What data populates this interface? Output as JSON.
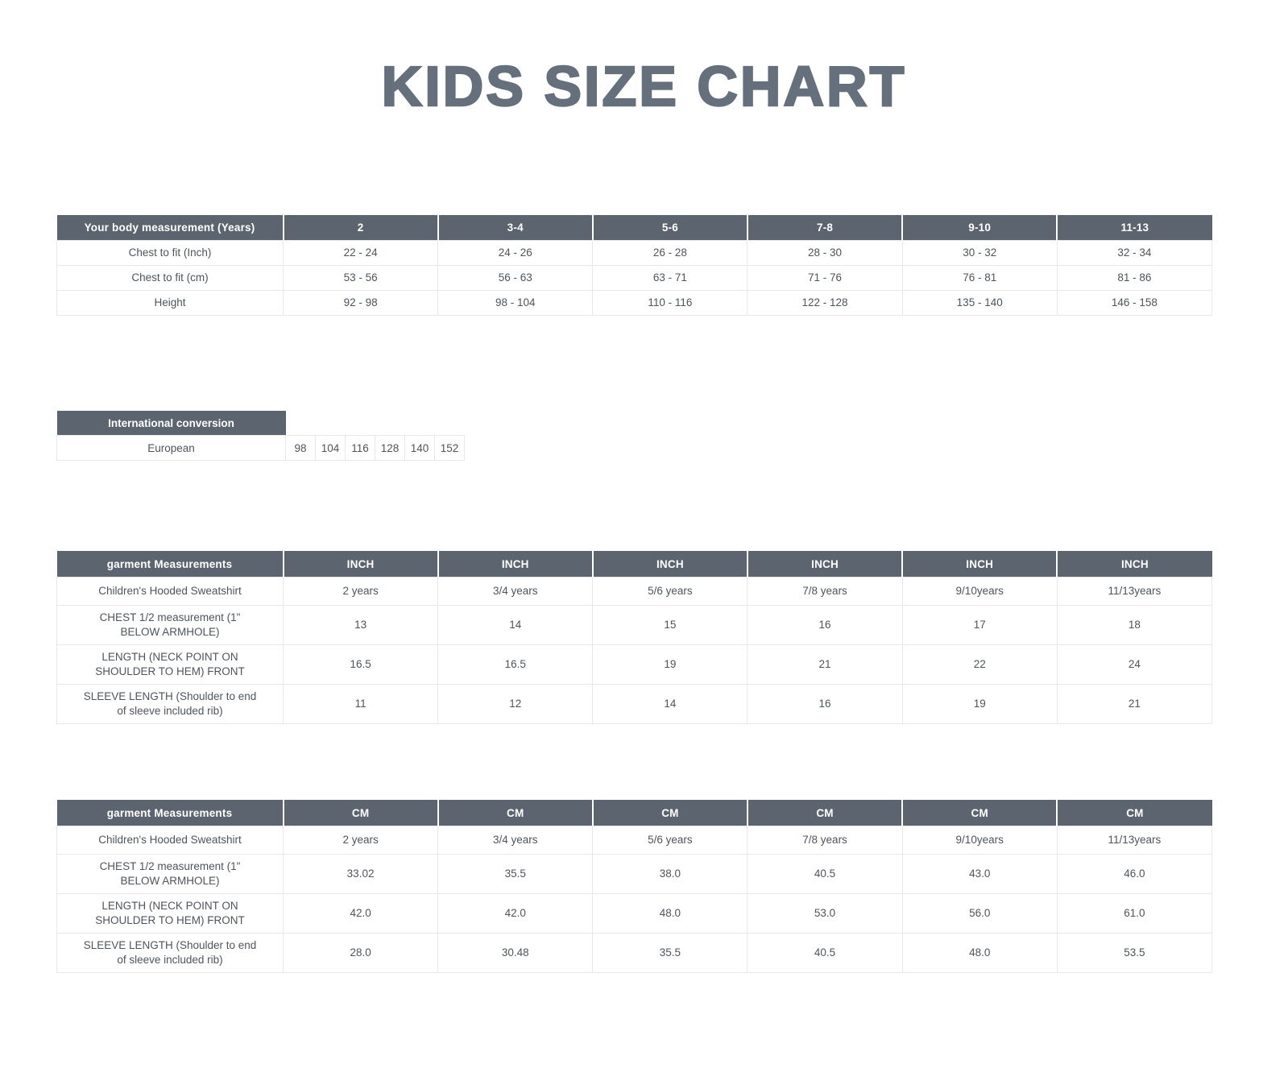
{
  "page": {
    "title": "KIDS SIZE CHART"
  },
  "colors": {
    "header_background": "#5c656f",
    "title_text": "#66707c",
    "body_text": "#4e545c",
    "grid_border": "#e7e8ea"
  },
  "body_measurement_table": {
    "header": [
      "Your body measurement (Years)",
      "2",
      "3-4",
      "5-6",
      "7-8",
      "9-10",
      "11-13"
    ],
    "rows": [
      [
        "Chest to fit (Inch)",
        "22 - 24",
        "24 - 26",
        "26 - 28",
        "28 - 30",
        "30 - 32",
        "32 - 34"
      ],
      [
        "Chest to fit (cm)",
        "53 - 56",
        "56 - 63",
        "63 - 71",
        "71 - 76",
        "76 - 81",
        "81 - 86"
      ],
      [
        "Height",
        "92 - 98",
        "98 - 104",
        "110 - 116",
        "122 - 128",
        "135 - 140",
        "146 - 158"
      ]
    ]
  },
  "international_conversion_table": {
    "header": "International conversion",
    "row_label": "European",
    "values": [
      "98",
      "104",
      "116",
      "128",
      "140",
      "152"
    ]
  },
  "garment_inch_table": {
    "header": [
      "garment Measurements",
      "INCH",
      "INCH",
      "INCH",
      "INCH",
      "INCH",
      "INCH"
    ],
    "rows": [
      [
        "Children's Hooded Sweatshirt",
        "2 years",
        "3/4 years",
        "5/6 years",
        "7/8 years",
        "9/10years",
        "11/13years"
      ],
      [
        "CHEST 1/2 measurement (1\" BELOW ARMHOLE)",
        "13",
        "14",
        "15",
        "16",
        "17",
        "18"
      ],
      [
        "LENGTH (NECK POINT ON SHOULDER TO HEM) FRONT",
        "16.5",
        "16.5",
        "19",
        "21",
        "22",
        "24"
      ],
      [
        "SLEEVE LENGTH (Shoulder to end of sleeve included rib)",
        "11",
        "12",
        "14",
        "16",
        "19",
        "21"
      ]
    ]
  },
  "garment_cm_table": {
    "header": [
      "garment Measurements",
      "CM",
      "CM",
      "CM",
      "CM",
      "CM",
      "CM"
    ],
    "rows": [
      [
        "Children's Hooded Sweatshirt",
        "2 years",
        "3/4 years",
        "5/6 years",
        "7/8 years",
        "9/10years",
        "11/13years"
      ],
      [
        "CHEST 1/2 measurement (1\" BELOW ARMHOLE)",
        "33.02",
        "35.5",
        "38.0",
        "40.5",
        "43.0",
        "46.0"
      ],
      [
        "LENGTH (NECK POINT ON SHOULDER TO HEM) FRONT",
        "42.0",
        "42.0",
        "48.0",
        "53.0",
        "56.0",
        "61.0"
      ],
      [
        "SLEEVE LENGTH (Shoulder to end of sleeve included rib)",
        "28.0",
        "30.48",
        "35.5",
        "40.5",
        "48.0",
        "53.5"
      ]
    ]
  }
}
